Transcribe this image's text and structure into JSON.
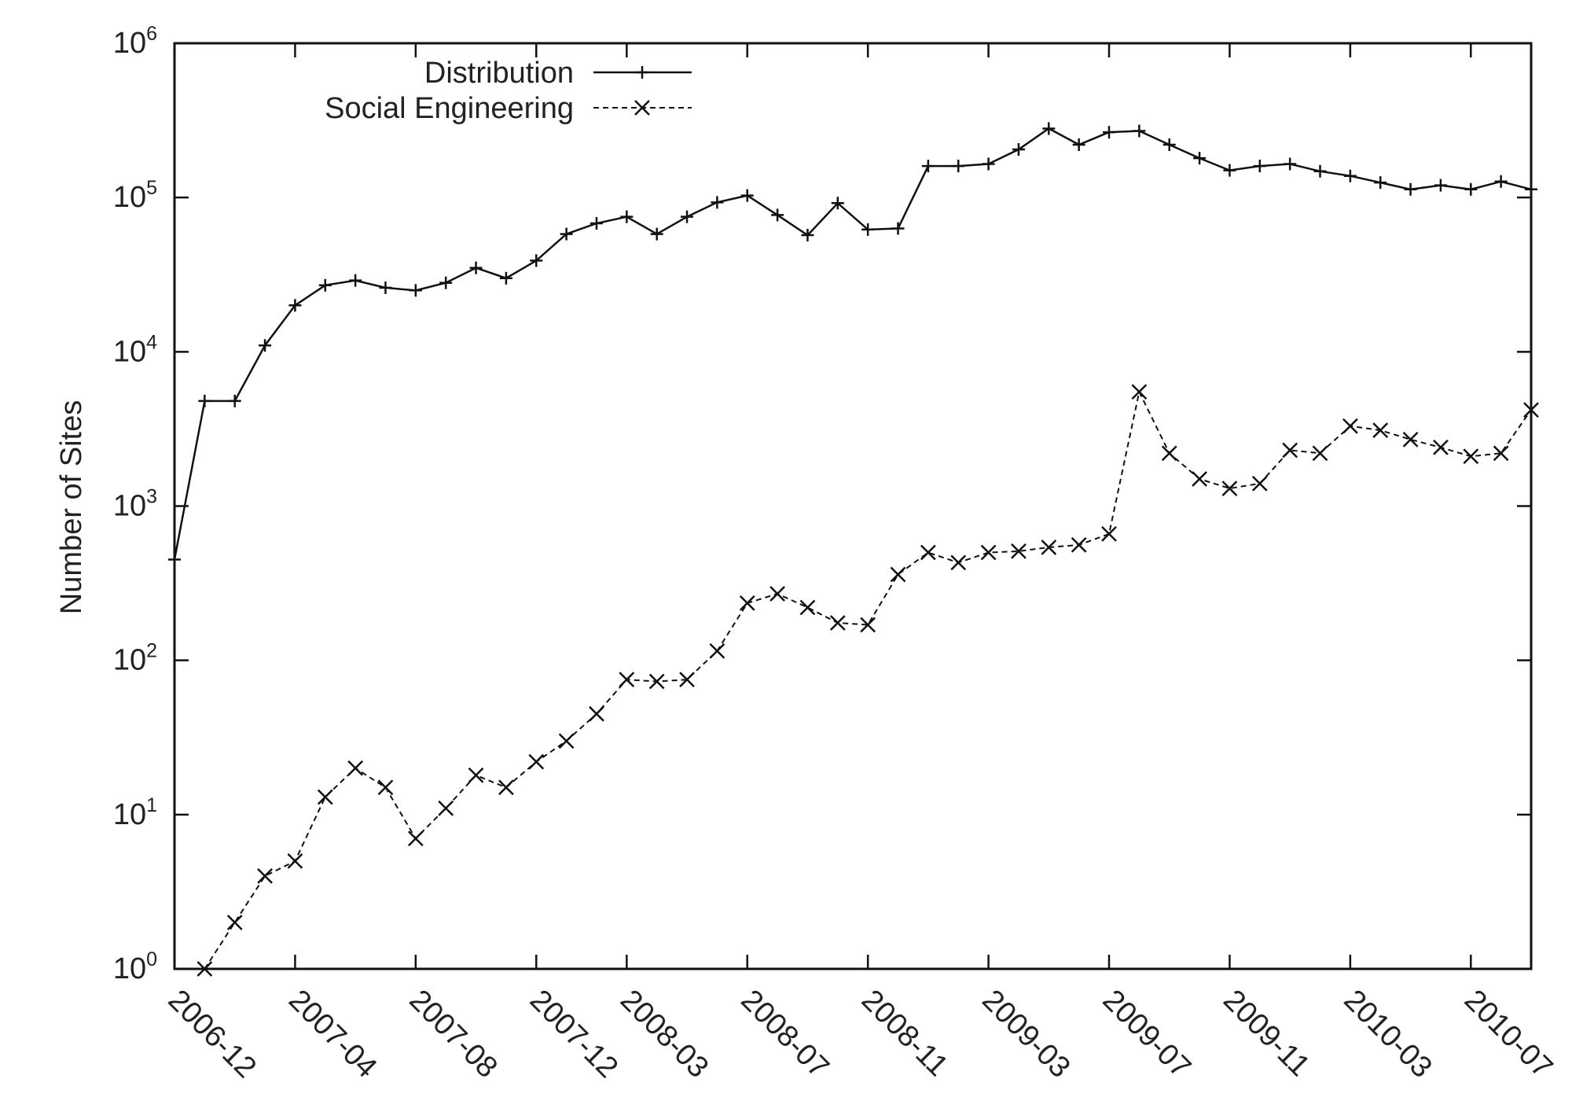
{
  "chart_data": {
    "type": "line",
    "title": "",
    "xlabel": "",
    "ylabel": "Number of Sites",
    "y_scale": "log",
    "ylim": [
      1,
      1000000
    ],
    "y_ticks": [
      {
        "base": "10",
        "exp": "0"
      },
      {
        "base": "10",
        "exp": "1"
      },
      {
        "base": "10",
        "exp": "2"
      },
      {
        "base": "10",
        "exp": "3"
      },
      {
        "base": "10",
        "exp": "4"
      },
      {
        "base": "10",
        "exp": "5"
      },
      {
        "base": "10",
        "exp": "6"
      }
    ],
    "x_tick_labels": [
      "2006-12",
      "2007-04",
      "2007-08",
      "2007-12",
      "2008-03",
      "2008-07",
      "2008-11",
      "2009-03",
      "2009-07",
      "2009-11",
      "2010-03",
      "2010-07"
    ],
    "x": [
      "2006-12",
      "2007-01",
      "2007-02",
      "2007-03",
      "2007-04",
      "2007-05",
      "2007-06",
      "2007-07",
      "2007-08",
      "2007-09",
      "2007-10",
      "2007-11",
      "2007-12",
      "2008-01",
      "2008-02",
      "2008-03",
      "2008-04",
      "2008-05",
      "2008-06",
      "2008-07",
      "2008-08",
      "2008-09",
      "2008-10",
      "2008-11",
      "2008-12",
      "2009-01",
      "2009-02",
      "2009-03",
      "2009-04",
      "2009-05",
      "2009-06",
      "2009-07",
      "2009-08",
      "2009-09",
      "2009-10",
      "2009-11",
      "2009-12",
      "2010-01",
      "2010-02",
      "2010-03",
      "2010-04",
      "2010-05",
      "2010-06",
      "2010-07",
      "2010-08",
      "2010-09"
    ],
    "legend_position": "top-left",
    "grid": false,
    "series": [
      {
        "name": "Distribution",
        "line_style": "solid",
        "marker": "plus",
        "values": [
          450,
          4800,
          4800,
          11000,
          20000,
          27000,
          29000,
          26000,
          25000,
          28000,
          35000,
          30000,
          39000,
          58000,
          68000,
          75000,
          58000,
          75000,
          93000,
          103000,
          77000,
          57000,
          92000,
          62000,
          63000,
          160000,
          160000,
          165000,
          205000,
          280000,
          220000,
          265000,
          270000,
          220000,
          180000,
          150000,
          160000,
          165000,
          148000,
          138000,
          125000,
          113000,
          120000,
          113000,
          127000,
          113000
        ]
      },
      {
        "name": "Social Engineering",
        "line_style": "dashed",
        "marker": "x",
        "values": [
          null,
          1,
          2,
          4,
          5,
          13,
          20,
          15,
          7,
          11,
          18,
          15,
          22,
          30,
          45,
          75,
          73,
          75,
          115,
          235,
          270,
          220,
          175,
          170,
          360,
          500,
          430,
          500,
          510,
          540,
          560,
          660,
          5500,
          2200,
          1500,
          1300,
          1400,
          2300,
          2200,
          3300,
          3100,
          2700,
          2400,
          2100,
          2200,
          4200
        ]
      }
    ]
  }
}
